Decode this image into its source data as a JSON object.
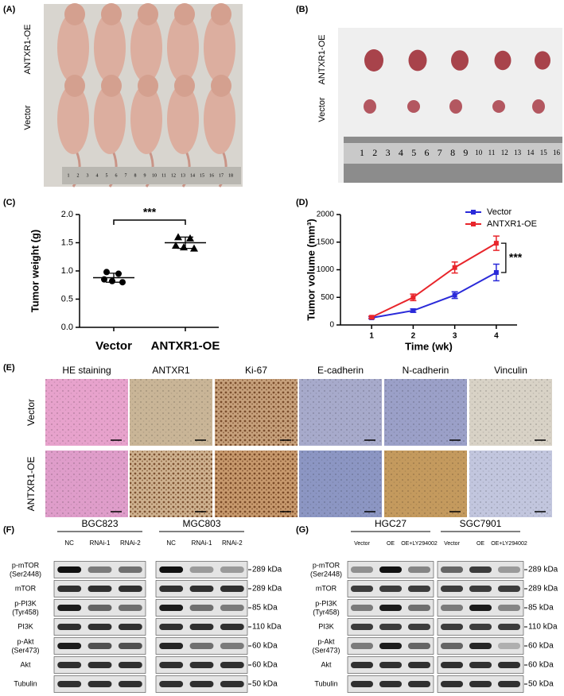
{
  "panels": {
    "A": {
      "label": "(A)",
      "groups": [
        "ANTXR1-OE",
        "Vector"
      ],
      "ruler": [
        1,
        2,
        3,
        4,
        5,
        6,
        7,
        8,
        9,
        10,
        11,
        12,
        13,
        14,
        15,
        16,
        17,
        18
      ]
    },
    "B": {
      "label": "(B)",
      "groups": [
        "ANTXR1-OE",
        "Vector"
      ],
      "ruler": [
        1,
        2,
        3,
        4,
        5,
        6,
        7,
        8,
        9,
        10,
        11,
        12,
        13,
        14,
        15,
        16
      ]
    },
    "E": {
      "label": "(E)",
      "columns": [
        "HE staining",
        "ANTXR1",
        "Ki-67",
        "E-cadherin",
        "N-cadherin",
        "Vinculin"
      ],
      "rows": [
        "Vector",
        "ANTXR1-OE"
      ]
    },
    "F": {
      "label": "(F)",
      "groups": [
        {
          "name": "BGC823",
          "lanes": [
            "NC",
            "RNAi-1",
            "RNAi-2"
          ]
        },
        {
          "name": "MGC803",
          "lanes": [
            "NC",
            "RNAi-1",
            "RNAi-2"
          ]
        }
      ],
      "rows": [
        {
          "name": "p-mTOR",
          "site": "(Ser2448)",
          "size": "289 kDa"
        },
        {
          "name": "mTOR",
          "size": "289 kDa"
        },
        {
          "name": "p-PI3K",
          "site": "(Tyr458)",
          "size": "85 kDa"
        },
        {
          "name": "PI3K",
          "size": "110 kDa"
        },
        {
          "name": "p-Akt",
          "site": "(Ser473)",
          "size": "60 kDa"
        },
        {
          "name": "Akt",
          "size": "60 kDa"
        },
        {
          "name": "Tubulin",
          "size": "50 kDa"
        }
      ]
    },
    "G": {
      "label": "(G)",
      "groups": [
        {
          "name": "HGC27",
          "lanes": [
            "Vector",
            "OE",
            "OE+LY294002"
          ]
        },
        {
          "name": "SGC7901",
          "lanes": [
            "Vector",
            "OE",
            "OE+LY294002"
          ]
        }
      ],
      "rows": [
        {
          "name": "p-mTOR",
          "site": "(Ser2448)",
          "size": "289 kDa"
        },
        {
          "name": "mTOR",
          "size": "289 kDa"
        },
        {
          "name": "p-PI3K",
          "site": "(Tyr458)",
          "size": "85 kDa"
        },
        {
          "name": "PI3K",
          "size": "110 kDa"
        },
        {
          "name": "p-Akt",
          "site": "(Ser473)",
          "size": "60 kDa"
        },
        {
          "name": "Akt",
          "size": "60 kDa"
        },
        {
          "name": "Tubulin",
          "size": "50 kDa"
        }
      ]
    }
  },
  "chart_data": [
    {
      "type": "scatter",
      "panel_label": "(C)",
      "y_label": "Tumor weight (g)",
      "categories": [
        "Vector",
        "ANTXR1-OE"
      ],
      "points": [
        [
          0.98,
          0.95,
          0.85,
          0.8,
          0.82
        ],
        [
          1.6,
          1.58,
          1.45,
          1.4,
          1.42
        ]
      ],
      "means": [
        0.88,
        1.5
      ],
      "errors": [
        0.08,
        0.1
      ],
      "color": "#000000",
      "annotation": "***",
      "ylim": [
        0,
        2.0
      ],
      "yticks": [
        {
          "value": 0,
          "label": "0.0"
        },
        0.5,
        {
          "value": 1.0,
          "label": "1.0"
        },
        1.5,
        {
          "value": 2.0,
          "label": "2.0"
        }
      ]
    },
    {
      "type": "line",
      "panel_label": "(D)",
      "x_label": "Time (wk)",
      "y_label": "Tumor volume (mm³)",
      "x": [
        1,
        2,
        3,
        4
      ],
      "series": [
        {
          "name": "Vector",
          "color": "#2a2ad9",
          "values": [
            130,
            260,
            540,
            950
          ],
          "errors": [
            20,
            30,
            60,
            150
          ]
        },
        {
          "name": "ANTXR1-OE",
          "color": "#e8252b",
          "values": [
            140,
            500,
            1040,
            1480
          ],
          "errors": [
            20,
            60,
            100,
            130
          ]
        }
      ],
      "annotation": "***",
      "xlim": [
        0.25,
        4.5
      ],
      "xticks": [
        1,
        2,
        3,
        4
      ],
      "ylim": [
        0,
        2000
      ],
      "yticks": [
        0,
        500,
        1000,
        1500,
        2000
      ]
    }
  ]
}
